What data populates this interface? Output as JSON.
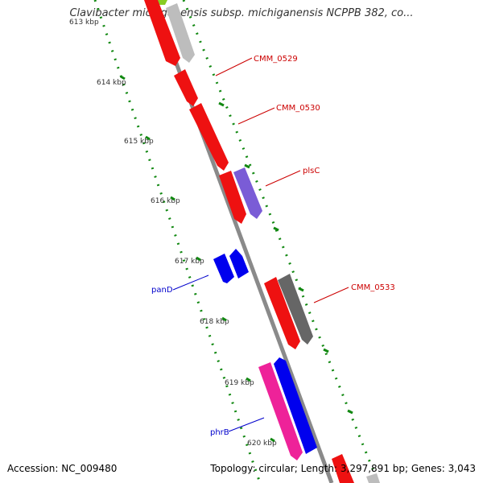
{
  "title": "Clavibacter michiganensis subsp. michiganensis NCPPB 382, co...",
  "footer": {
    "accession": "Accession: NC_009480",
    "summary": "Topology: circular; Length: 3,297,891 bp; Genes: 3,043"
  },
  "ticks": [
    {
      "label": "613 kbp"
    },
    {
      "label": "614 kbp"
    },
    {
      "label": "615 kbp"
    },
    {
      "label": "616 kbp"
    },
    {
      "label": "617 kbp"
    },
    {
      "label": "618 kbp"
    },
    {
      "label": "619 kbp"
    },
    {
      "label": "620 kbp"
    }
  ],
  "genes": [
    {
      "label": "CMM_0529",
      "label_color": "#cc0000"
    },
    {
      "label": "CMM_0530",
      "label_color": "#cc0000"
    },
    {
      "label": "plsC",
      "label_color": "#cc0000"
    },
    {
      "label": "CMM_0533",
      "label_color": "#cc0000"
    },
    {
      "label": "panD",
      "label_color": "#0000cc"
    },
    {
      "label": "phrB",
      "label_color": "#0000cc"
    }
  ],
  "colors": {
    "backbone": "#8a8a8a",
    "tick_dots": "#118811",
    "gene_red": "#ee1111",
    "gene_gray": "#bdbdbd",
    "gene_dark_gray": "#666666",
    "gene_purple": "#7a5cd6",
    "gene_blue": "#0000ee",
    "gene_pink": "#ee2299",
    "gene_green": "#88cc22"
  }
}
